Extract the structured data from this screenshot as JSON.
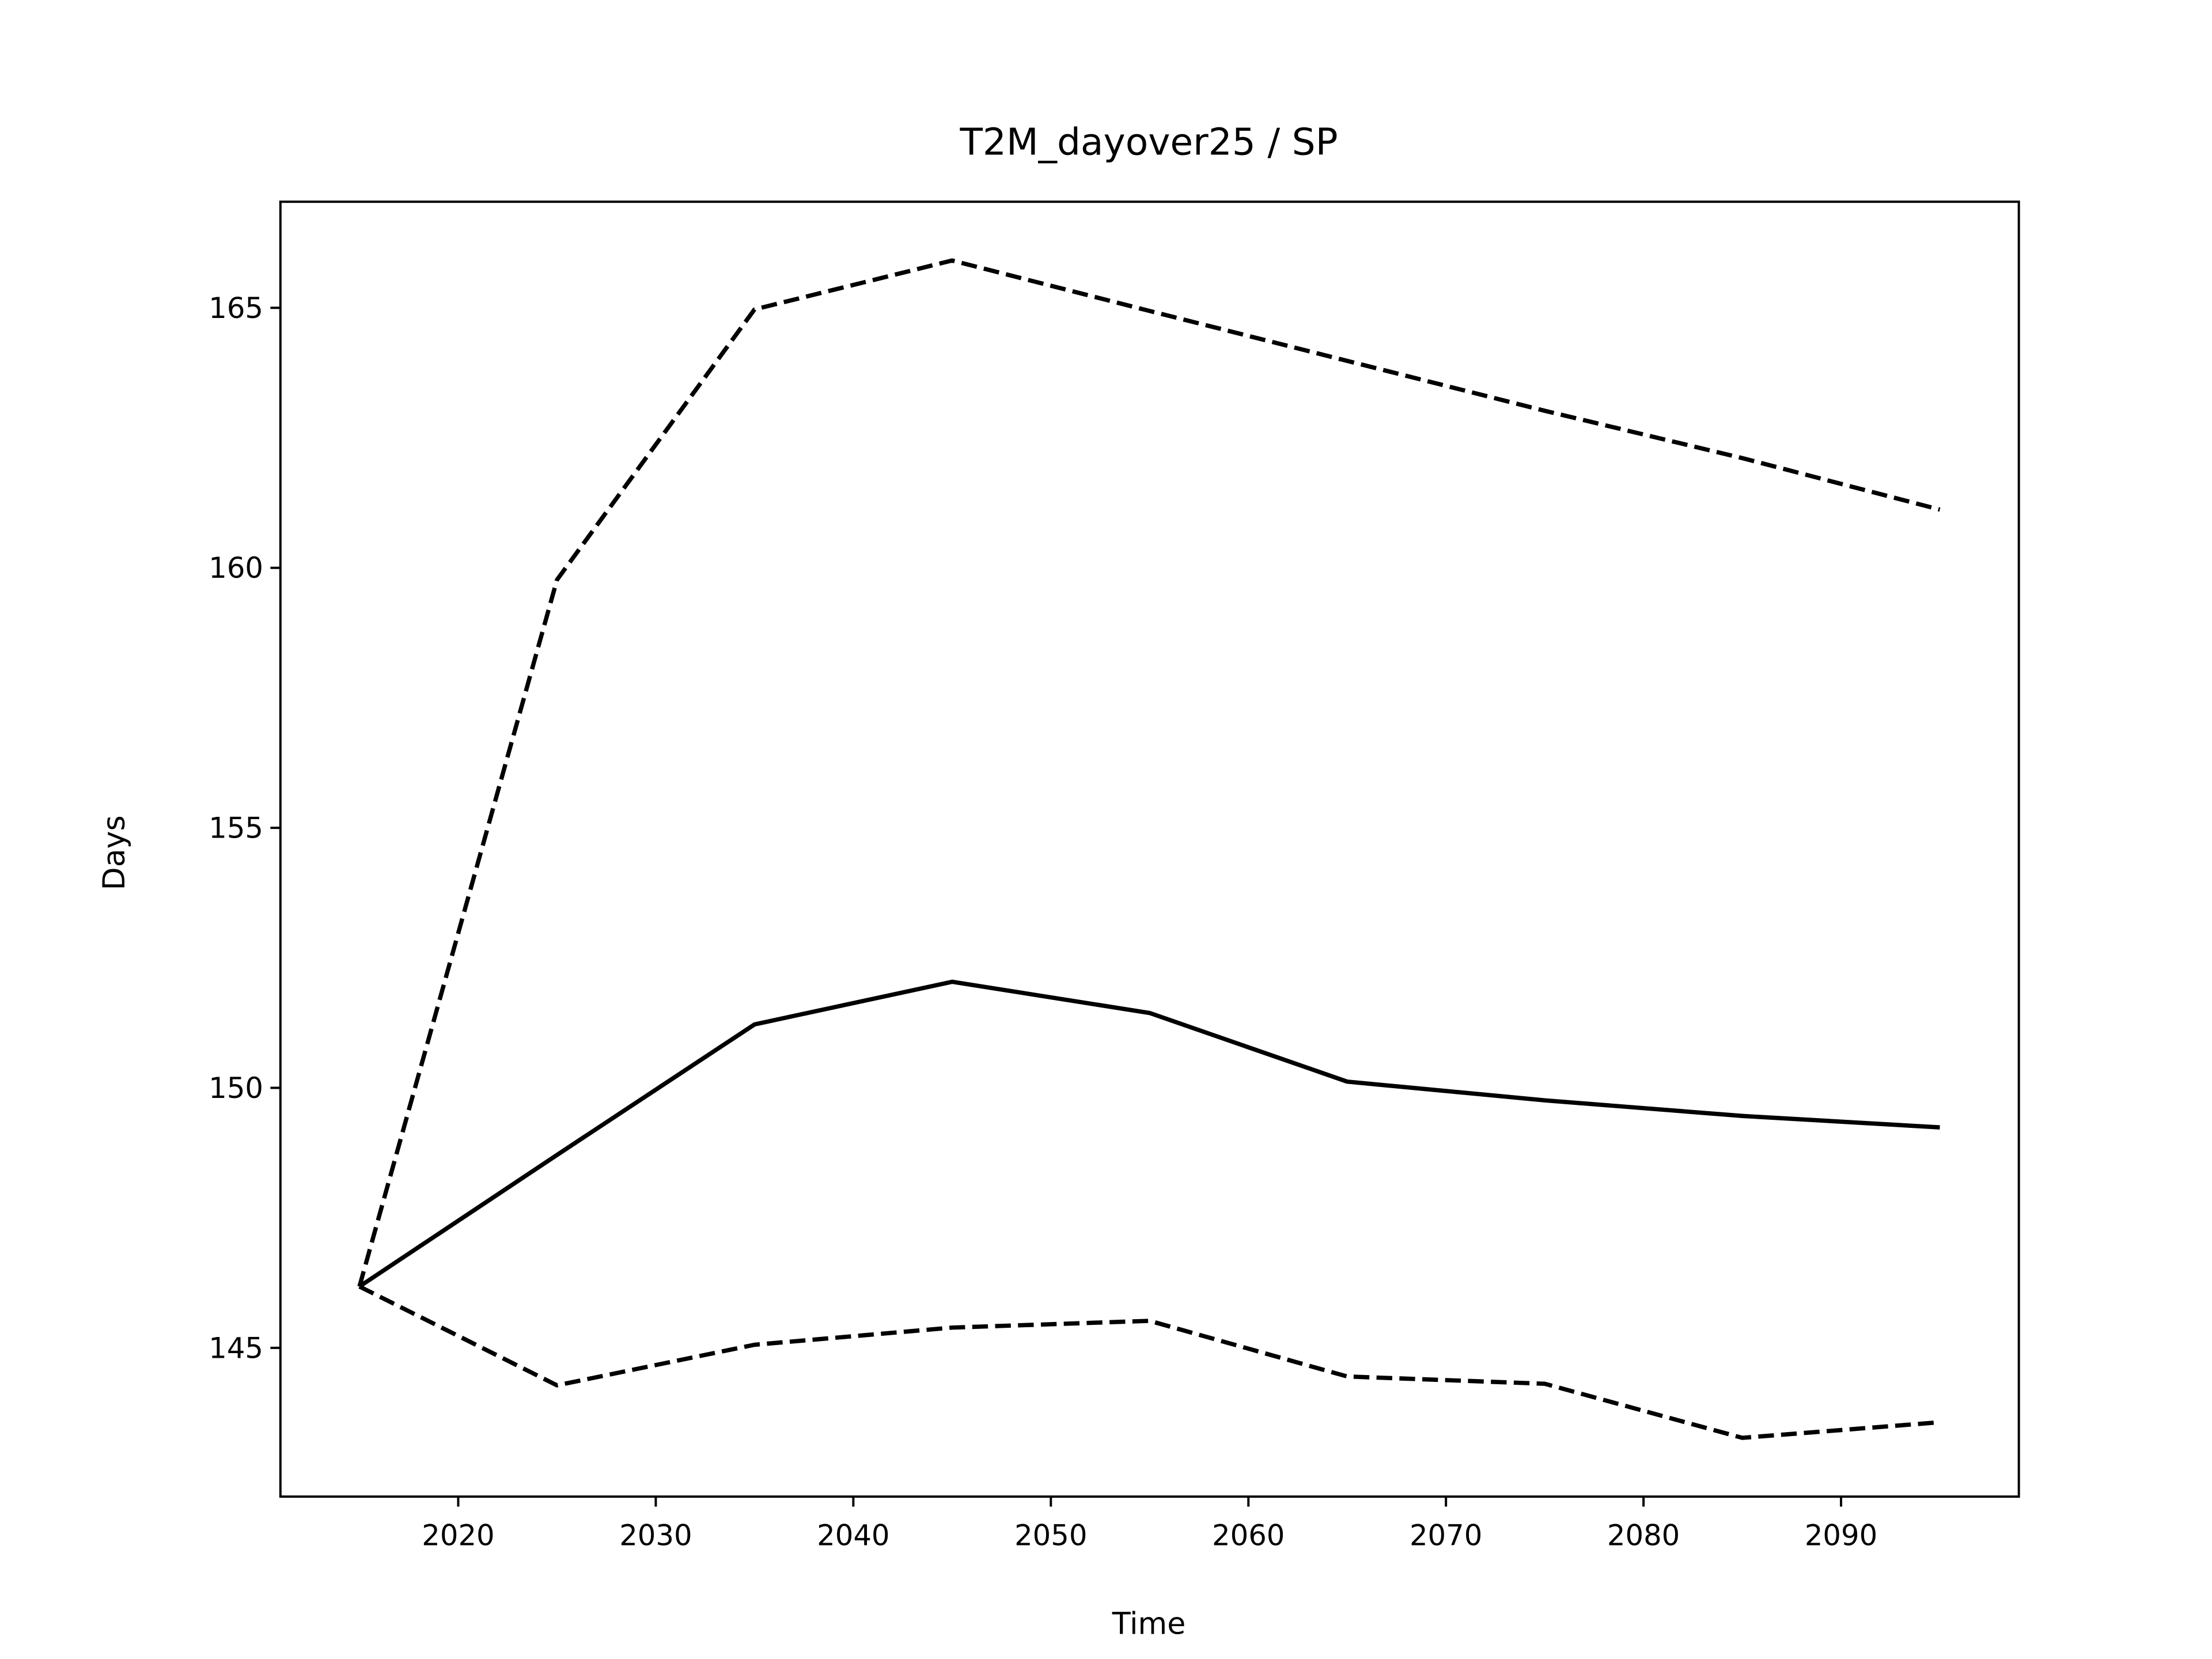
{
  "chart_data": {
    "type": "line",
    "title": "T2M_dayover25 / SP",
    "xlabel": "Time",
    "ylabel": "Days",
    "x": [
      2015,
      2025,
      2035,
      2045,
      2055,
      2065,
      2075,
      2085,
      2095
    ],
    "series": [
      {
        "color": "#000000",
        "linestyle": "solid",
        "values": [
          146.18,
          148.71,
          151.22,
          152.04,
          151.44,
          150.12,
          149.76,
          149.46,
          149.24
        ]
      },
      {
        "color": "#000000",
        "linestyle": "dashed",
        "values": [
          146.18,
          159.77,
          164.97,
          165.91,
          164.94,
          163.98,
          163.02,
          162.11,
          161.12
        ]
      },
      {
        "color": "#000000",
        "linestyle": "dashed",
        "values": [
          146.18,
          144.28,
          145.06,
          145.39,
          145.52,
          144.45,
          144.31,
          143.27,
          143.57
        ]
      }
    ],
    "xlim": [
      2011,
      2099
    ],
    "xticks": [
      2020,
      2030,
      2040,
      2050,
      2060,
      2070,
      2080,
      2090
    ],
    "ylim": [
      142.14,
      167.04
    ],
    "yticks": [
      145,
      150,
      155,
      160,
      165
    ],
    "grid": false
  }
}
